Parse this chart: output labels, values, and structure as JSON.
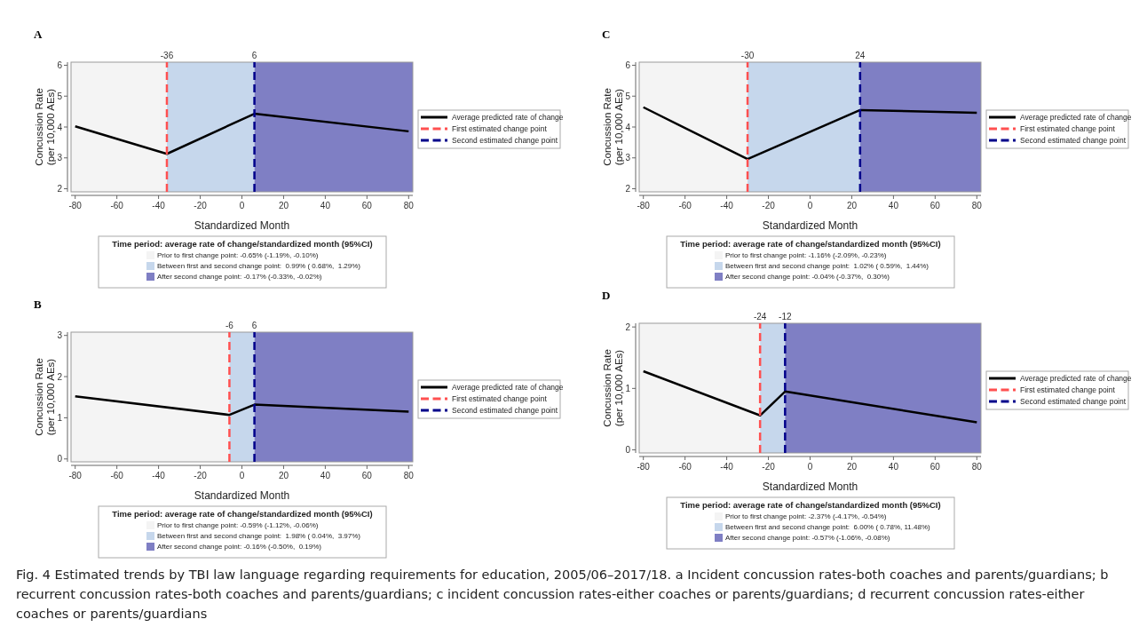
{
  "chart_data": [
    {
      "type": "line",
      "title": "A",
      "xlabel": "Standardized Month",
      "ylabel": "Concussion Rate (per 10,000 AEs)",
      "xlim": [
        -82,
        82
      ],
      "ylim": [
        1.9,
        6.1
      ],
      "xticks": [
        -80,
        -60,
        -40,
        -20,
        0,
        20,
        40,
        60,
        80
      ],
      "yticks": [
        2,
        3,
        4,
        5,
        6
      ],
      "x2lim": [
        -82,
        82
      ],
      "x2ticks": [
        -36,
        6
      ],
      "legend": "right",
      "legend_title": "Time period: average rate of change/standardized month (95%CI)",
      "series": [
        {
          "name": "Average predicted rate of change",
          "color": "#000000",
          "x": [
            -80,
            -36,
            6,
            80
          ],
          "values": [
            4.02,
            3.13,
            4.43,
            3.86
          ]
        },
        {
          "name": "First estimated change point",
          "color": "#ff5050",
          "line_style": "dashed",
          "x": [
            -36,
            -36
          ],
          "values": [
            1.9,
            6.1
          ]
        },
        {
          "name": "Second estimated change point",
          "color": "#00008b",
          "line_style": "dashed",
          "x": [
            6,
            6
          ],
          "values": [
            1.9,
            6.1
          ]
        }
      ],
      "bands": [
        {
          "axis": "x",
          "from": -82,
          "to": -36,
          "label": "Prior to first change point: -0.65% (-1.19%, -0.10%)",
          "color": "#f4f4f4"
        },
        {
          "axis": "x",
          "from": -36,
          "to": 6,
          "label": "Between first and second change point:  0.99% ( 0.68%,  1.29%)",
          "color": "#c6d7ec"
        },
        {
          "axis": "x",
          "from": 6,
          "to": 82,
          "label": "After second change point: -0.17% (-0.33%, -0.02%)",
          "color": "#7f7fc4"
        }
      ],
      "annotations": [
        "Fig. 4 Estimated trends by TBI law language regarding requirements for education, 2005/06–2017/18. a Incident concussion rates-both coaches and parents/guardians; b recurrent concussion rates-both coaches and parents/guardians; c incident concussion rates-either coaches or parents/guardians; d recurrent concussion rates-either coaches or parents/guardians"
      ]
    },
    {
      "type": "line",
      "title": "C",
      "xlabel": "Standardized Month",
      "ylabel": "Concussion Rate (per 10,000 AEs)",
      "xlim": [
        -82,
        82
      ],
      "ylim": [
        1.9,
        6.1
      ],
      "xticks": [
        -80,
        -60,
        -40,
        -20,
        0,
        20,
        40,
        60,
        80
      ],
      "yticks": [
        2,
        3,
        4,
        5,
        6
      ],
      "x2lim": [
        -82,
        82
      ],
      "x2ticks": [
        -30,
        24
      ],
      "legend": "right",
      "legend_title": "Time period: average rate of change/standardized month (95%CI)",
      "series": [
        {
          "name": "Average predicted rate of change",
          "color": "#000000",
          "x": [
            -80,
            -30,
            24,
            80
          ],
          "values": [
            4.64,
            2.96,
            4.55,
            4.46
          ]
        },
        {
          "name": "First estimated change point",
          "color": "#ff5050",
          "line_style": "dashed",
          "x": [
            -30,
            -30
          ],
          "values": [
            1.9,
            6.1
          ]
        },
        {
          "name": "Second estimated change point",
          "color": "#00008b",
          "line_style": "dashed",
          "x": [
            24,
            24
          ],
          "values": [
            1.9,
            6.1
          ]
        }
      ],
      "bands": [
        {
          "axis": "x",
          "from": -82,
          "to": -30,
          "label": "Prior to first change point: -1.16% (-2.09%, -0.23%)",
          "color": "#f4f4f4"
        },
        {
          "axis": "x",
          "from": -30,
          "to": 24,
          "label": "Between first and second change point:  1.02% ( 0.59%,  1.44%)",
          "color": "#c6d7ec"
        },
        {
          "axis": "x",
          "from": 24,
          "to": 82,
          "label": "After second change point: -0.04% (-0.37%,  0.30%)",
          "color": "#7f7fc4"
        }
      ]
    },
    {
      "type": "line",
      "title": "B",
      "xlabel": "Standardized Month",
      "ylabel": "Concussion Rate (per 10,000 AEs)",
      "xlim": [
        -82,
        82
      ],
      "ylim": [
        -0.07,
        3.08
      ],
      "xticks": [
        -80,
        -60,
        -40,
        -20,
        0,
        20,
        40,
        60,
        80
      ],
      "yticks": [
        0,
        1,
        2,
        3
      ],
      "x2lim": [
        -82,
        82
      ],
      "x2ticks": [
        -6,
        6
      ],
      "legend": "right",
      "legend_title": "Time period: average rate of change/standardized month (95%CI)",
      "series": [
        {
          "name": "Average predicted rate of change",
          "color": "#000000",
          "x": [
            -80,
            -6,
            6,
            80
          ],
          "values": [
            1.52,
            1.07,
            1.32,
            1.15
          ]
        },
        {
          "name": "First estimated change point",
          "color": "#ff5050",
          "line_style": "dashed",
          "x": [
            -6,
            -6
          ],
          "values": [
            -0.07,
            3.08
          ]
        },
        {
          "name": "Second estimated change point",
          "color": "#00008b",
          "line_style": "dashed",
          "x": [
            6,
            6
          ],
          "values": [
            -0.07,
            3.08
          ]
        }
      ],
      "bands": [
        {
          "axis": "x",
          "from": -82,
          "to": -6,
          "label": "Prior to first change point: -0.59% (-1.12%, -0.06%)",
          "color": "#f4f4f4"
        },
        {
          "axis": "x",
          "from": -6,
          "to": 6,
          "label": "Between first and second change point:  1.98% ( 0.04%,  3.97%)",
          "color": "#c6d7ec"
        },
        {
          "axis": "x",
          "from": 6,
          "to": 82,
          "label": "After second change point: -0.16% (-0.50%,  0.19%)",
          "color": "#7f7fc4"
        }
      ]
    },
    {
      "type": "line",
      "title": "D",
      "xlabel": "Standardized Month",
      "ylabel": "Concussion Rate (per 10,000 AEs)",
      "xlim": [
        -82,
        82
      ],
      "ylim": [
        -0.05,
        2.06
      ],
      "xticks": [
        -80,
        -60,
        -40,
        -20,
        0,
        20,
        40,
        60,
        80
      ],
      "yticks": [
        0,
        1,
        2
      ],
      "x2lim": [
        -82,
        82
      ],
      "x2ticks": [
        -24,
        -12
      ],
      "legend": "right",
      "legend_title": "Time period: average rate of change/standardized month (95%CI)",
      "series": [
        {
          "name": "Average predicted rate of change",
          "color": "#000000",
          "x": [
            -80,
            -24,
            -12,
            80
          ],
          "values": [
            1.28,
            0.56,
            0.95,
            0.45
          ]
        },
        {
          "name": "First estimated change point",
          "color": "#ff5050",
          "line_style": "dashed",
          "x": [
            -24,
            -24
          ],
          "values": [
            -0.05,
            2.06
          ]
        },
        {
          "name": "Second estimated change point",
          "color": "#00008b",
          "line_style": "dashed",
          "x": [
            -12,
            -12
          ],
          "values": [
            -0.05,
            2.06
          ]
        }
      ],
      "bands": [
        {
          "axis": "x",
          "from": -82,
          "to": -24,
          "label": "Prior to first change point: -2.37% (-4.17%, -0.54%)",
          "color": "#f4f4f4"
        },
        {
          "axis": "x",
          "from": -24,
          "to": -12,
          "label": "Between first and second change point:  6.00% ( 0.78%, 11.48%)",
          "color": "#c6d7ec"
        },
        {
          "axis": "x",
          "from": -12,
          "to": 82,
          "label": "After second change point: -0.57% (-1.06%, -0.08%)",
          "color": "#7f7fc4"
        }
      ]
    }
  ]
}
